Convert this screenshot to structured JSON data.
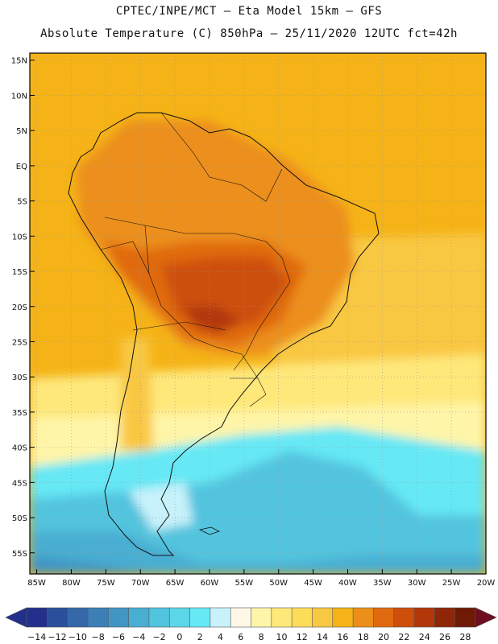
{
  "header": {
    "line1": "CPTEC/INPE/MCT –  Eta Model 15km – GFS",
    "line2": "Absolute Temperature (C) 850hPa – 25/11/2020 12UTC fct=42h"
  },
  "map": {
    "lat_labels": [
      "15N",
      "10N",
      "5N",
      "EQ",
      "5S",
      "10S",
      "15S",
      "20S",
      "25S",
      "30S",
      "35S",
      "40S",
      "45S",
      "50S",
      "55S"
    ],
    "lon_labels": [
      "85W",
      "80W",
      "75W",
      "70W",
      "65W",
      "60W",
      "55W",
      "50W",
      "45W",
      "40W",
      "35W",
      "30W",
      "25W",
      "20W"
    ],
    "region": "South America",
    "lon_range": [
      -86,
      -20
    ],
    "lat_range": [
      -58,
      16
    ]
  },
  "colorbar": {
    "labels": [
      "-14",
      "-12",
      "-10",
      "-8",
      "-6",
      "-4",
      "-2",
      "0",
      "2",
      "4",
      "6",
      "8",
      "10",
      "12",
      "14",
      "16",
      "18",
      "20",
      "22",
      "24",
      "26",
      "28"
    ],
    "colors": [
      "#22308c",
      "#2c4f9c",
      "#3568a8",
      "#3b7fb6",
      "#4196c4",
      "#48aed2",
      "#52c4de",
      "#5cd6e8",
      "#66e8f5",
      "#c8f2fb",
      "#fff8e6",
      "#fff5a8",
      "#fee87a",
      "#fddc5a",
      "#f9c843",
      "#f5b317",
      "#ec8f1a",
      "#e06a10",
      "#cd4f0b",
      "#b2380a",
      "#8f2608",
      "#6e1a07"
    ]
  }
}
